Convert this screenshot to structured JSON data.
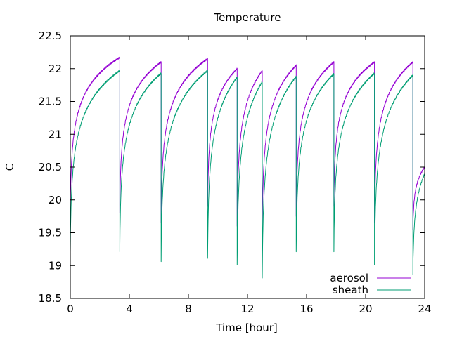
{
  "chart_data": {
    "type": "line",
    "title": "Temperature",
    "xlabel": "Time [hour]",
    "ylabel": "C",
    "xlim": [
      0,
      24
    ],
    "ylim": [
      18.5,
      22.5
    ],
    "xticks": [
      0,
      4,
      8,
      12,
      16,
      20,
      24
    ],
    "xtick_labels": [
      "0",
      "4",
      "8",
      "12",
      "16",
      "20",
      "24"
    ],
    "yticks": [
      18.5,
      19,
      19.5,
      20,
      20.5,
      21,
      21.5,
      22,
      22.5
    ],
    "ytick_labels": [
      "18.5",
      "19",
      "19.5",
      "20",
      "20.5",
      "21",
      "21.5",
      "22",
      "22.5"
    ],
    "grid": false,
    "legend_position": "bottom-right",
    "series": [
      {
        "name": "aerosol",
        "color": "#9400d3",
        "cycles": [
          {
            "t0": 0.0,
            "t1": 3.35,
            "start": 19.8,
            "end": 22.17
          },
          {
            "t0": 3.35,
            "t1": 6.15,
            "start": 19.8,
            "end": 22.1
          },
          {
            "t0": 6.15,
            "t1": 9.3,
            "start": 19.65,
            "end": 22.15
          },
          {
            "t0": 9.3,
            "t1": 11.3,
            "start": 19.9,
            "end": 22.0
          },
          {
            "t0": 11.3,
            "t1": 13.0,
            "start": 19.6,
            "end": 21.97
          },
          {
            "t0": 13.0,
            "t1": 15.3,
            "start": 19.55,
            "end": 22.05
          },
          {
            "t0": 15.3,
            "t1": 17.85,
            "start": 19.75,
            "end": 22.1
          },
          {
            "t0": 17.85,
            "t1": 20.6,
            "start": 19.9,
            "end": 22.1
          },
          {
            "t0": 20.6,
            "t1": 23.2,
            "start": 19.65,
            "end": 22.1
          },
          {
            "t0": 23.2,
            "t1": 24.0,
            "start": 19.55,
            "end": 20.5
          }
        ]
      },
      {
        "name": "sheath",
        "color": "#009e73",
        "cycles": [
          {
            "t0": 0.0,
            "t1": 3.35,
            "start": 19.2,
            "end": 21.97
          },
          {
            "t0": 3.35,
            "t1": 6.15,
            "start": 19.2,
            "end": 21.93
          },
          {
            "t0": 6.15,
            "t1": 9.3,
            "start": 19.05,
            "end": 21.97
          },
          {
            "t0": 9.3,
            "t1": 11.3,
            "start": 19.1,
            "end": 21.87
          },
          {
            "t0": 11.3,
            "t1": 13.0,
            "start": 19.0,
            "end": 21.8
          },
          {
            "t0": 13.0,
            "t1": 15.3,
            "start": 18.8,
            "end": 21.88
          },
          {
            "t0": 15.3,
            "t1": 17.85,
            "start": 19.2,
            "end": 21.92
          },
          {
            "t0": 17.85,
            "t1": 20.6,
            "start": 19.2,
            "end": 21.93
          },
          {
            "t0": 20.6,
            "t1": 23.2,
            "start": 19.0,
            "end": 21.9
          },
          {
            "t0": 23.2,
            "t1": 24.0,
            "start": 18.85,
            "end": 20.4
          }
        ]
      }
    ]
  }
}
